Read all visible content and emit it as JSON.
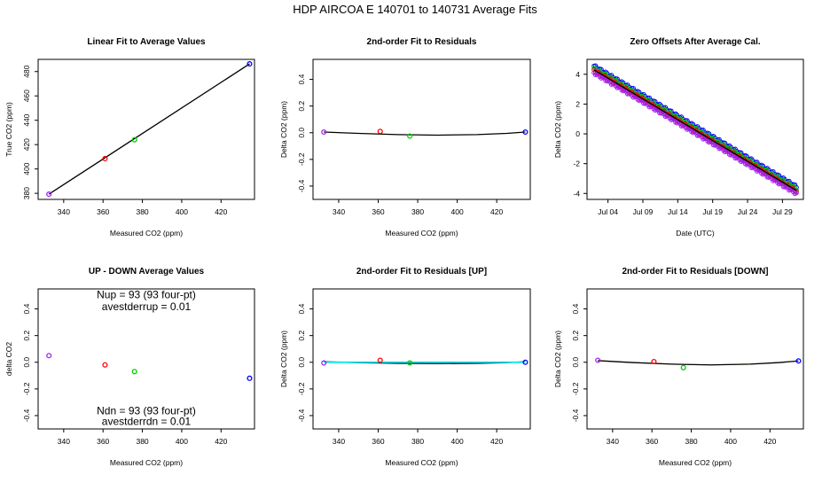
{
  "figure": {
    "title": "HDP    AIRCOA E   140701 to 140731   Average Fits"
  },
  "chart_data": [
    {
      "id": "p1",
      "type": "scatter",
      "title": "Linear Fit to Average Values",
      "xlabel": "Measured CO2 (ppm)",
      "ylabel": "True CO2 (ppm)",
      "xlim": [
        327,
        437
      ],
      "ylim": [
        375,
        490
      ],
      "xticks": [
        340,
        360,
        380,
        400,
        420
      ],
      "yticks": [
        380,
        400,
        420,
        440,
        460,
        480
      ],
      "ytick_labels_rotated": true,
      "points": [
        {
          "x": 332.5,
          "y": 379.3,
          "color": "#a020f0"
        },
        {
          "x": 361.0,
          "y": 408.5,
          "color": "#ff0000"
        },
        {
          "x": 376.0,
          "y": 424.0,
          "color": "#00cc00"
        },
        {
          "x": 434.5,
          "y": 486.3,
          "color": "#0000ff"
        }
      ],
      "lines": [
        {
          "x": [
            332.5,
            434.5
          ],
          "y": [
            379.3,
            486.3
          ],
          "color": "#000000"
        }
      ]
    },
    {
      "id": "p2",
      "type": "scatter",
      "title": "2nd-order Fit to Residuals",
      "xlabel": "Measured CO2 (ppm)",
      "ylabel": "Delta CO2 (ppm)",
      "xlim": [
        327,
        437
      ],
      "ylim": [
        -0.5,
        0.55
      ],
      "xticks": [
        340,
        360,
        380,
        400,
        420
      ],
      "yticks": [
        -0.4,
        -0.2,
        0.0,
        0.2,
        0.4
      ],
      "ytick_labels_rotated": true,
      "points": [
        {
          "x": 332.5,
          "y": 0.005,
          "color": "#a020f0"
        },
        {
          "x": 361.0,
          "y": 0.01,
          "color": "#ff0000"
        },
        {
          "x": 376.0,
          "y": -0.025,
          "color": "#00cc00"
        },
        {
          "x": 434.5,
          "y": 0.005,
          "color": "#0000ff"
        }
      ],
      "lines": [
        {
          "x": [
            332.5,
            350,
            370,
            390,
            410,
            425,
            434.5
          ],
          "y": [
            0.005,
            -0.005,
            -0.014,
            -0.018,
            -0.014,
            -0.005,
            0.005
          ],
          "color": "#000000"
        }
      ]
    },
    {
      "id": "p3",
      "type": "scatter",
      "title": "Zero Offsets After Average Cal.",
      "xlabel": "Date (UTC)",
      "ylabel": "Delta CO2 (ppm)",
      "xlim": [
        0,
        31
      ],
      "ylim": [
        -4.4,
        5.0
      ],
      "xticks": [
        3,
        8,
        13,
        18,
        23,
        28
      ],
      "xtick_labels": [
        "Jul 04",
        "Jul 09",
        "Jul 14",
        "Jul 19",
        "Jul 24",
        "Jul 29"
      ],
      "yticks": [
        -4,
        -2,
        0,
        2,
        4
      ],
      "ytick_labels_rotated": false,
      "trend": {
        "start": {
          "x": 1.0,
          "y": 4.3
        },
        "end": {
          "x": 30.0,
          "y": -3.8
        },
        "count": 140,
        "series": [
          {
            "name": "",
            "color": "#0000ff",
            "offset": 0.25
          },
          {
            "name": "",
            "color": "#00cc00",
            "offset": 0.1
          },
          {
            "name": "",
            "color": "#ff0000",
            "offset": -0.05
          },
          {
            "name": "",
            "color": "#a020f0",
            "offset": -0.2
          }
        ]
      },
      "lines": [
        {
          "x": [
            1.0,
            30.0
          ],
          "y": [
            4.3,
            -3.8
          ],
          "color": "#000000"
        }
      ]
    },
    {
      "id": "p4",
      "type": "scatter",
      "title": "UP - DOWN Average Values",
      "xlabel": "Measured CO2 (ppm)",
      "ylabel": "delta CO2",
      "xlim": [
        327,
        437
      ],
      "ylim": [
        -0.5,
        0.55
      ],
      "xticks": [
        340,
        360,
        380,
        400,
        420
      ],
      "yticks": [
        -0.4,
        -0.2,
        0.0,
        0.2,
        0.4
      ],
      "ytick_labels_rotated": true,
      "points": [
        {
          "x": 332.5,
          "y": 0.05,
          "color": "#a020f0"
        },
        {
          "x": 361.0,
          "y": -0.02,
          "color": "#ff0000"
        },
        {
          "x": 376.0,
          "y": -0.07,
          "color": "#00cc00"
        },
        {
          "x": 434.5,
          "y": -0.12,
          "color": "#0000ff"
        }
      ],
      "annotations": [
        {
          "text": "Nup = 93 (93 four-pt)",
          "x": 382,
          "y": 0.48
        },
        {
          "text": "avestderrup =  0.01",
          "x": 382,
          "y": 0.39
        },
        {
          "text": "Ndn = 93 (93 four-pt)",
          "x": 382,
          "y": -0.39
        },
        {
          "text": "avestderrdn =  0.01",
          "x": 382,
          "y": -0.47
        }
      ]
    },
    {
      "id": "p5",
      "type": "scatter",
      "title": "2nd-order Fit to Residuals [UP]",
      "xlabel": "Measured CO2 (ppm)",
      "ylabel": "Delta CO2 (ppm)",
      "xlim": [
        327,
        437
      ],
      "ylim": [
        -0.5,
        0.55
      ],
      "xticks": [
        340,
        360,
        380,
        400,
        420
      ],
      "yticks": [
        -0.4,
        -0.2,
        0.0,
        0.2,
        0.4
      ],
      "ytick_labels_rotated": true,
      "points": [
        {
          "x": 332.5,
          "y": -0.005,
          "color": "#a020f0"
        },
        {
          "x": 361.0,
          "y": 0.015,
          "color": "#ff0000"
        },
        {
          "x": 376.0,
          "y": -0.005,
          "color": "#00cc00"
        },
        {
          "x": 434.5,
          "y": 0.0,
          "color": "#0000ff"
        }
      ],
      "lines": [
        {
          "x": [
            332.5,
            350,
            370,
            390,
            410,
            425,
            434.5
          ],
          "y": [
            0.004,
            -0.003,
            -0.008,
            -0.01,
            -0.008,
            -0.003,
            0.004
          ],
          "color": "#000000"
        },
        {
          "x": [
            332.5,
            434.5
          ],
          "y": [
            0.0,
            0.0
          ],
          "color": "#00e5ee"
        }
      ]
    },
    {
      "id": "p6",
      "type": "scatter",
      "title": "2nd-order Fit to Residuals [DOWN]",
      "xlabel": "Measured CO2 (ppm)",
      "ylabel": "Delta CO2 (ppm)",
      "xlim": [
        327,
        437
      ],
      "ylim": [
        -0.5,
        0.55
      ],
      "xticks": [
        340,
        360,
        380,
        400,
        420
      ],
      "yticks": [
        -0.4,
        -0.2,
        0.0,
        0.2,
        0.4
      ],
      "ytick_labels_rotated": true,
      "points": [
        {
          "x": 332.5,
          "y": 0.015,
          "color": "#a020f0"
        },
        {
          "x": 361.0,
          "y": 0.005,
          "color": "#ff0000"
        },
        {
          "x": 376.0,
          "y": -0.04,
          "color": "#00cc00"
        },
        {
          "x": 434.5,
          "y": 0.01,
          "color": "#0000ff"
        }
      ],
      "lines": [
        {
          "x": [
            332.5,
            350,
            370,
            390,
            410,
            425,
            434.5
          ],
          "y": [
            0.012,
            -0.002,
            -0.014,
            -0.02,
            -0.014,
            -0.002,
            0.01
          ],
          "color": "#000000"
        }
      ],
      "dotted_curve": {
        "x": [
          332.5,
          345,
          360,
          375,
          390,
          405,
          420,
          434.5
        ],
        "y": [
          0.012,
          0.002,
          -0.008,
          -0.016,
          -0.02,
          -0.016,
          -0.006,
          0.01
        ],
        "color": "#ffa500"
      }
    }
  ]
}
